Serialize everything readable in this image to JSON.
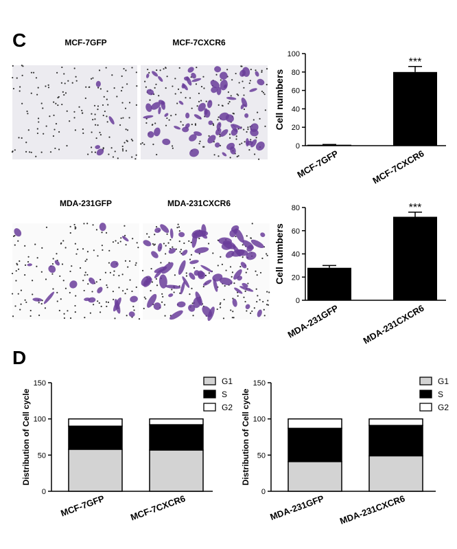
{
  "panel_labels": [
    "C",
    "D"
  ],
  "micrographs": [
    "MCF-7GFP",
    "MCF-7CXCR6",
    "MDA-231GFP",
    "MDA-231CXCR6"
  ],
  "chart_data": [
    {
      "type": "bar",
      "ylabel": "Cell numbers",
      "categories": [
        "MCF-7GFP",
        "MCF-7CXCR6"
      ],
      "values": [
        1,
        80
      ],
      "errors": [
        0.3,
        6
      ],
      "color": "#000000",
      "ylim": [
        0,
        100
      ],
      "yticks": [
        0,
        20,
        40,
        60,
        80,
        100
      ],
      "annotation": "***"
    },
    {
      "type": "bar",
      "ylabel": "Cell numbers",
      "categories": [
        "MDA-231GFP",
        "MDA-231CXCR6"
      ],
      "values": [
        28,
        72
      ],
      "errors": [
        2,
        4
      ],
      "color": "#000000",
      "ylim": [
        0,
        80
      ],
      "yticks": [
        0,
        20,
        40,
        60,
        80
      ],
      "annotation": "***"
    },
    {
      "type": "stacked_bar",
      "ylabel": "Distribution of Cell cycle",
      "categories": [
        "MCF-7GFP",
        "MCF-7CXCR6"
      ],
      "series": [
        {
          "name": "G1",
          "color": "#d3d3d3",
          "values": [
            58,
            57
          ]
        },
        {
          "name": "S",
          "color": "#000000",
          "values": [
            32,
            35
          ]
        },
        {
          "name": "G2",
          "color": "#ffffff",
          "values": [
            10,
            8
          ]
        }
      ],
      "ylim": [
        0,
        150
      ],
      "yticks": [
        0,
        50,
        100,
        150
      ],
      "legend": "upper right"
    },
    {
      "type": "stacked_bar",
      "ylabel": "Distribution of Cell cycle",
      "categories": [
        "MDA-231GFP",
        "MDA-231CXCR6"
      ],
      "series": [
        {
          "name": "G1",
          "color": "#d3d3d3",
          "values": [
            41,
            49
          ]
        },
        {
          "name": "S",
          "color": "#000000",
          "values": [
            46,
            42
          ]
        },
        {
          "name": "G2",
          "color": "#ffffff",
          "values": [
            13,
            9
          ]
        }
      ],
      "ylim": [
        0,
        150
      ],
      "yticks": [
        0,
        50,
        100,
        150
      ],
      "legend": "upper right"
    }
  ]
}
